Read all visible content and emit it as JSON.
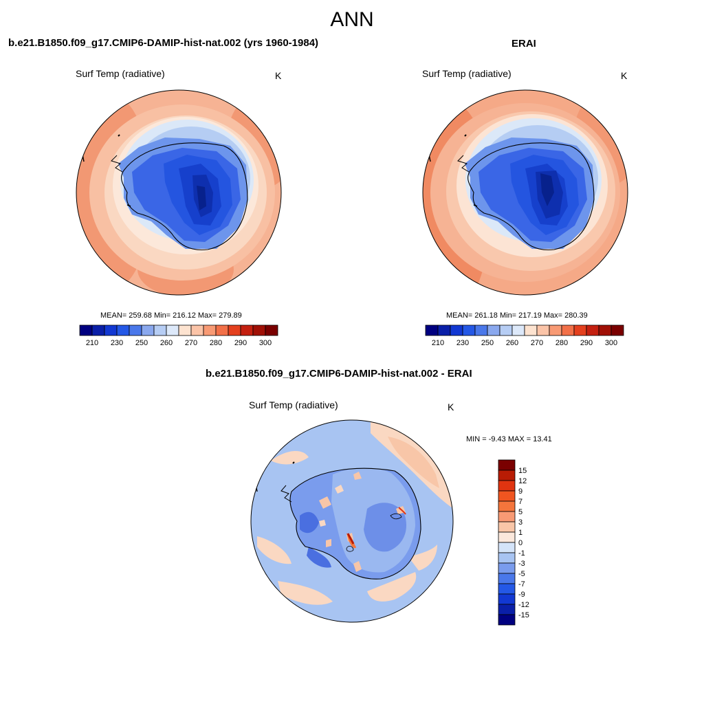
{
  "page": {
    "title": "ANN"
  },
  "panels": {
    "model": {
      "title": "b.e21.B1850.f09_g17.CMIP6-DAMIP-hist-nat.002 (yrs 1960-1984)",
      "variable": "Surf Temp (radiative)",
      "units": "K",
      "stats": "MEAN= 259.68  Min= 216.12  Max= 279.89"
    },
    "obs": {
      "title": "ERAI",
      "variable": "Surf Temp (radiative)",
      "units": "K",
      "stats": "MEAN= 261.18  Min= 217.19  Max= 280.39"
    },
    "diff": {
      "title": "b.e21.B1850.f09_g17.CMIP6-DAMIP-hist-nat.002 - ERAI",
      "variable": "Surf Temp (radiative)",
      "units": "K",
      "stats": "MIN =  -9.43 MAX =  13.41"
    }
  },
  "colorbars": {
    "absolute": {
      "colors": [
        "#000080",
        "#0a1fa8",
        "#1238d2",
        "#2458e6",
        "#4a78ea",
        "#8aa8ee",
        "#b6cdf4",
        "#dde9fa",
        "#fde3d0",
        "#fbc4a8",
        "#f89a74",
        "#f27048",
        "#e4401e",
        "#c42010",
        "#a01006",
        "#7a0000"
      ],
      "labels": [
        "210",
        "230",
        "250",
        "260",
        "270",
        "280",
        "290",
        "300"
      ]
    },
    "difference": {
      "colors": [
        "#000080",
        "#0a1fa8",
        "#1238d2",
        "#2458e6",
        "#4a78ea",
        "#7a9ced",
        "#a8c4f2",
        "#d4e4f9",
        "#fbe8dc",
        "#f9c6a8",
        "#f89a74",
        "#f4753c",
        "#f05520",
        "#e03410",
        "#b81c04",
        "#7a0000"
      ],
      "labels": [
        "15",
        "12",
        "9",
        "7",
        "5",
        "3",
        "1",
        "0",
        "-1",
        "-3",
        "-5",
        "-7",
        "-9",
        "-12",
        "-15"
      ]
    }
  }
}
